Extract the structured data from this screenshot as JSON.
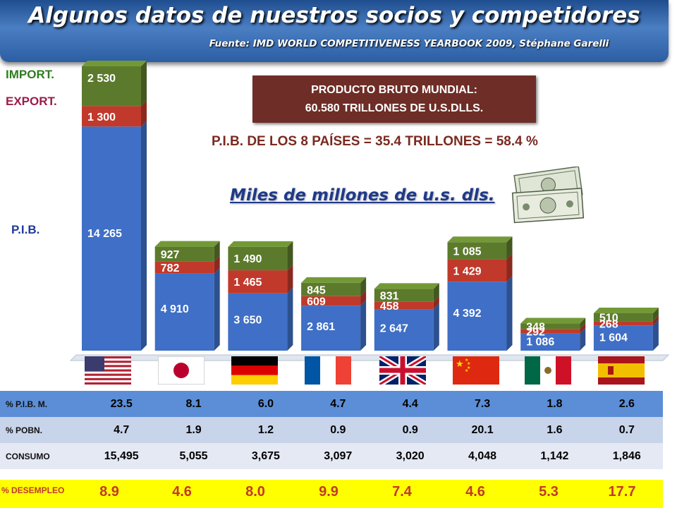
{
  "header": {
    "title": "Algunos datos de nuestros socios y competidores",
    "subtitle": "Fuente: IMD WORLD COMPETITIVENESS YEARBOOK 2009, Stéphane Garelli"
  },
  "legend": {
    "import": "IMPORT.",
    "export": "EXPORT.",
    "gdp": "P.I.B."
  },
  "world_gdp": {
    "line1": "PRODUCTO  BRUTO MUNDIAL:",
    "line2": "60.580 TRILLONES DE U.S.DLLS."
  },
  "gdp_share": "P.I.B. DE LOS 8 PAÍSES = 35.4 TRILLONES = 58.4 %",
  "units": "Miles de millones de u.s. dls.",
  "colors": {
    "pib": "#3f6fc6",
    "export": "#c0392b",
    "import": "#5c7a2c",
    "unemployment_bg": "#ffff00",
    "unemployment_text": "#c0392b"
  },
  "chart_data": {
    "type": "bar",
    "stacked": true,
    "categories": [
      "USA",
      "Japón",
      "Alemania",
      "Francia",
      "Reino Unido",
      "China",
      "México",
      "España"
    ],
    "series": [
      {
        "name": "P.I.B.",
        "values": [
          14265,
          4910,
          3650,
          2861,
          2647,
          4392,
          1086,
          1604
        ]
      },
      {
        "name": "EXPORT.",
        "values": [
          1300,
          782,
          1465,
          609,
          458,
          1429,
          292,
          268
        ]
      },
      {
        "name": "IMPORT.",
        "values": [
          2530,
          927,
          1490,
          845,
          831,
          1085,
          348,
          510
        ]
      }
    ],
    "labels": {
      "P.I.B.": [
        "14 265",
        "4 910",
        "3 650",
        "2 861",
        "2 647",
        "4 392",
        "1 086",
        "1 604"
      ],
      "EXPORT.": [
        "1 300",
        "782",
        "1 465",
        "609",
        "458",
        "1 429",
        "292",
        "268"
      ],
      "IMPORT.": [
        "2 530",
        "927",
        "1 490",
        "845",
        "831",
        "1 085",
        "348",
        "510"
      ]
    }
  },
  "flags": [
    "us-flag",
    "japan-flag",
    "germany-flag",
    "france-flag",
    "uk-flag",
    "china-flag",
    "mexico-flag",
    "spain-flag"
  ],
  "table": {
    "rows": [
      {
        "label": "% P.I.B. M.",
        "values": [
          "23.5",
          "8.1",
          "6.0",
          "4.7",
          "4.4",
          "7.3",
          "1.8",
          "2.6"
        ]
      },
      {
        "label": "% POBN.",
        "values": [
          "4.7",
          "1.9",
          "1.2",
          "0.9",
          "0.9",
          "20.1",
          "1.6",
          "0.7"
        ]
      },
      {
        "label": "CONSUMO",
        "values": [
          "15,495",
          "5,055",
          "3,675",
          "3,097",
          "3,020",
          "4,048",
          "1,142",
          "1,846"
        ]
      }
    ],
    "unemployment": {
      "label": "% DESEMPLEO",
      "values": [
        "8.9",
        "4.6",
        "8.0",
        "9.9",
        "7.4",
        "4.6",
        "5.3",
        "17.7"
      ]
    }
  }
}
